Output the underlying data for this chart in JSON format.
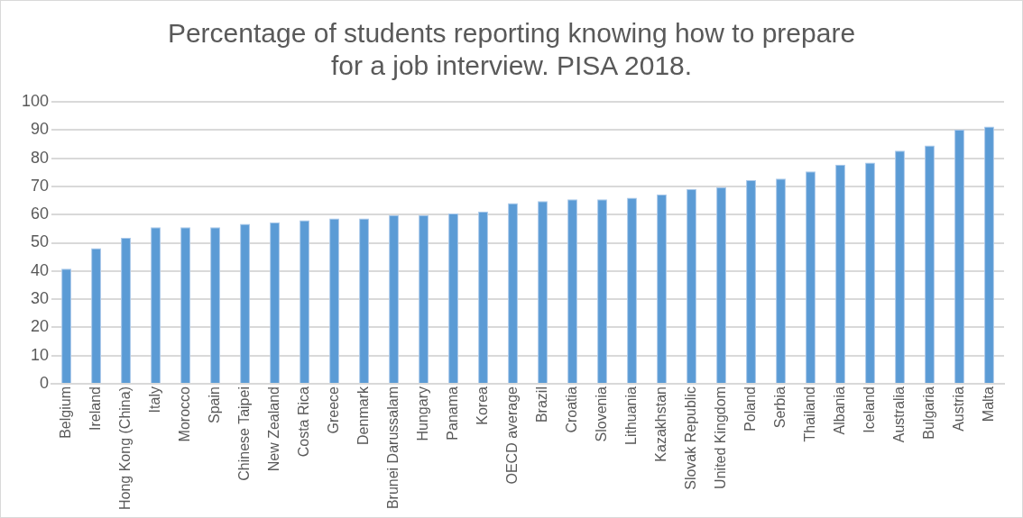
{
  "chart_data": {
    "type": "bar",
    "title": [
      "Percentage of students reporting knowing how to prepare",
      "for a job interview. PISA 2018."
    ],
    "categories": [
      "Belgium",
      "Ireland",
      "Hong Kong (China)",
      "Italy",
      "Morocco",
      "Spain",
      "Chinese Taipei",
      "New Zealand",
      "Costa Rica",
      "Greece",
      "Denmark",
      "Brunei Darussalam",
      "Hungary",
      "Panama",
      "Korea",
      "OECD average",
      "Brazil",
      "Croatia",
      "Slovenia",
      "Lithuania",
      "Kazakhstan",
      "Slovak Republic",
      "United Kingdom",
      "Poland",
      "Serbia",
      "Thailand",
      "Albania",
      "Iceland",
      "Australia",
      "Bulgaria",
      "Austria",
      "Malta"
    ],
    "values": [
      40.8,
      48.1,
      51.8,
      55.5,
      55.5,
      55.5,
      56.7,
      57.3,
      58.0,
      58.6,
      58.6,
      59.8,
      59.8,
      60.4,
      61.1,
      64.1,
      64.8,
      65.4,
      65.4,
      66.0,
      67.2,
      69.1,
      69.7,
      72.2,
      72.8,
      75.3,
      77.7,
      78.4,
      82.7,
      84.5,
      90.1,
      91.2
    ],
    "color": "#5b9bd5",
    "ylim": [
      0,
      100
    ],
    "yticks": [
      0,
      10,
      20,
      30,
      40,
      50,
      60,
      70,
      80,
      90,
      100
    ],
    "grid": "y",
    "legend": false
  }
}
